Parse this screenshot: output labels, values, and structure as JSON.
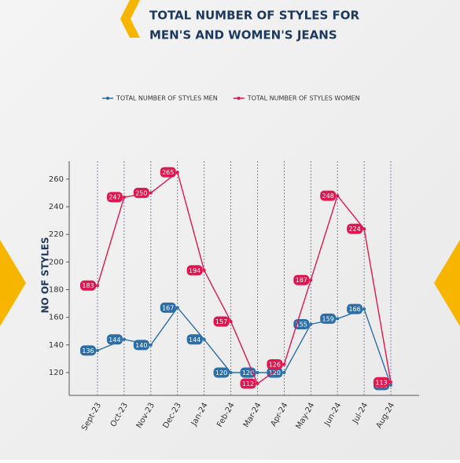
{
  "chart_data": {
    "type": "line",
    "title": "TOTAL NUMBER OF STYLES FOR",
    "subtitle": "MEN'S AND WOMEN'S JEANS",
    "y_label": "NO OF STYLES",
    "categories": [
      "Sept-23",
      "Oct-23",
      "Nov-23",
      "Dec-23",
      "Jan-24",
      "Feb-24",
      "Mar-24",
      "Apr-24",
      "May-24",
      "Jun-24",
      "Jul-24",
      "Aug-24"
    ],
    "series": [
      {
        "name": "TOTAL NUMBER OF STYLES MEN",
        "color": "#2b6ea8",
        "values": [
          136,
          144,
          140,
          167,
          144,
          120,
          120,
          120,
          155,
          159,
          166,
          111
        ]
      },
      {
        "name": "TOTAL NUMBER OF STYLES WOMEN",
        "color": "#e0174f",
        "values": [
          183,
          247,
          250,
          265,
          194,
          157,
          112,
          126,
          187,
          248,
          224,
          113
        ]
      }
    ],
    "ylim": [
      103.5,
      273
    ],
    "yticks": [
      120,
      140,
      160,
      180,
      200,
      220,
      240,
      260
    ],
    "grid": "x",
    "legend": "top"
  }
}
